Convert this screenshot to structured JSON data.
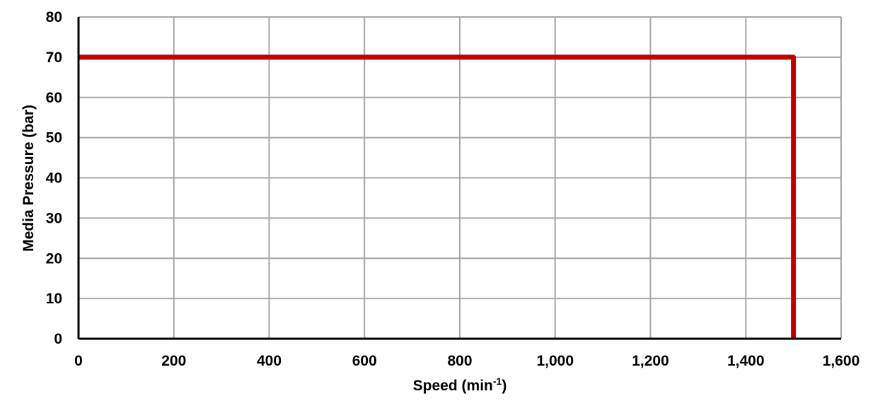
{
  "chart_data": {
    "type": "line",
    "title": "",
    "xlabel": "Speed (min",
    "xlabel_superscript": "-1",
    "xlabel_suffix": ")",
    "ylabel": "Media Pressure (bar)",
    "xlim": [
      0,
      1600
    ],
    "ylim": [
      0,
      80
    ],
    "x_ticks": [
      0,
      200,
      400,
      600,
      800,
      1000,
      1200,
      1400,
      1600
    ],
    "x_tick_labels": [
      "0",
      "200",
      "400",
      "600",
      "800",
      "1,000",
      "1,200",
      "1,400",
      "1,600"
    ],
    "y_ticks": [
      0,
      10,
      20,
      30,
      40,
      50,
      60,
      70,
      80
    ],
    "y_tick_labels": [
      "0",
      "10",
      "20",
      "30",
      "40",
      "50",
      "60",
      "70",
      "80"
    ],
    "grid": true,
    "legend": "none",
    "series": [
      {
        "color": "#c00000",
        "points": [
          {
            "x": 0,
            "y": 70
          },
          {
            "x": 1500,
            "y": 70
          },
          {
            "x": 1500,
            "y": 0
          }
        ]
      }
    ],
    "colors": {
      "grid": "#a6a6a6",
      "axis": "#000000",
      "series": "#c00000"
    }
  }
}
